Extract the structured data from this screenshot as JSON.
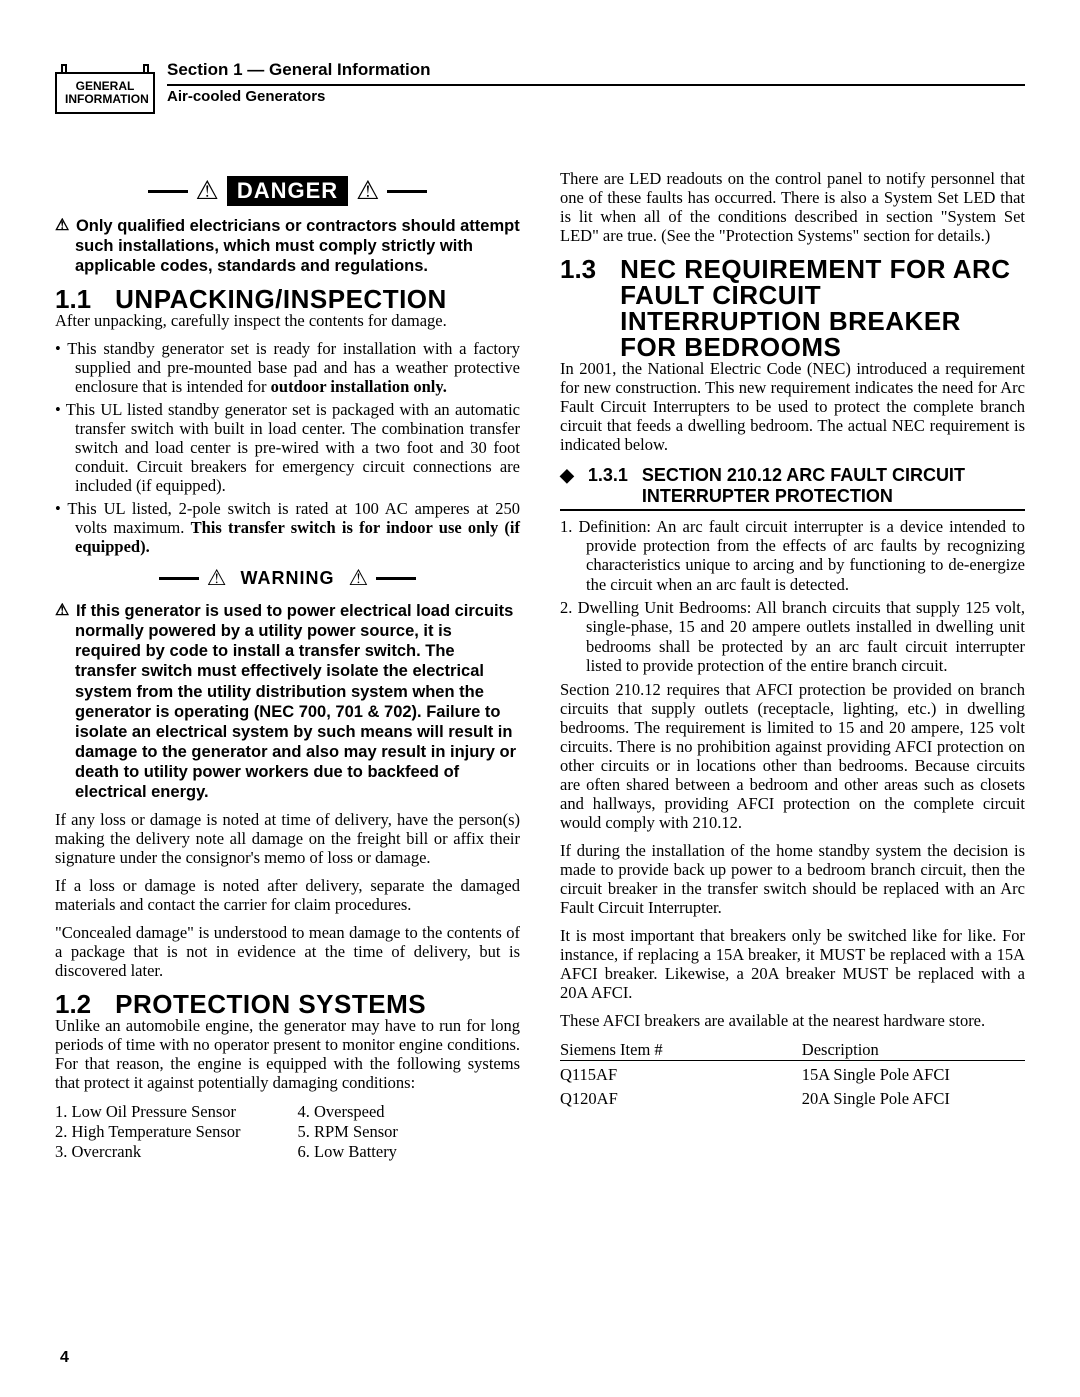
{
  "header": {
    "tab_line1": "GENERAL",
    "tab_line2": "INFORMATION",
    "section_title": "Section 1 — General Information",
    "subtitle": "Air-cooled Generators"
  },
  "left": {
    "danger_label": "DANGER",
    "danger_text": "Only qualified electricians or contractors should attempt such installations, which must comply strictly with applicable codes, standards and regulations.",
    "s11_num": "1.1",
    "s11_title": "UNPACKING/INSPECTION",
    "s11_intro": "After unpacking, carefully inspect the contents for damage.",
    "s11_bullets": [
      {
        "pre": "This standby generator set is ready for installation with a factory supplied and pre-mounted base pad and has a weather protective enclosure that is intended for ",
        "bold": "outdoor installation only."
      },
      {
        "pre": "This UL listed standby generator set is packaged with an automatic transfer switch with built in load center. The combination transfer switch and load center is pre-wired with a two foot and 30 foot conduit. Circuit breakers for emergency circuit connections are included (if equipped).",
        "bold": ""
      },
      {
        "pre": "This UL listed, 2-pole switch is rated at 100 AC amperes at 250 volts maximum. ",
        "bold": "This transfer switch is for indoor use only (if equipped)."
      }
    ],
    "warning_label": "WARNING",
    "warning_text": "If this generator is used to power electrical load circuits normally powered by a utility power source, it is required by code to install a transfer switch. The transfer switch must effectively isolate the electrical system from the utility distribution system when the generator is operating (NEC 700, 701 & 702). Failure to isolate an electrical system by such means will result in damage to the generator and also may result in injury or death to utility power workers due to backfeed of electrical energy.",
    "p1": "If any loss or damage is noted at time of delivery, have the person(s) making the delivery note all damage on the freight bill or affix their signature under the consignor's memo of loss or damage.",
    "p2": "If a loss or damage is noted after delivery, separate the damaged materials and contact the carrier for claim procedures.",
    "p3": "\"Concealed damage\" is understood to mean damage to the contents of a package that is not in evidence at the time of delivery, but is discovered later.",
    "s12_num": "1.2",
    "s12_title": "PROTECTION SYSTEMS",
    "s12_intro": "Unlike an automobile engine, the generator may have to run for long periods of time with no operator present to monitor engine conditions. For that reason, the engine is equipped with the following systems that protect it against potentially damaging conditions:",
    "sensors_left": [
      "1. Low Oil Pressure Sensor",
      "2. High Temperature Sensor",
      "3. Overcrank"
    ],
    "sensors_right": [
      "4. Overspeed",
      "5. RPM Sensor",
      "6. Low Battery"
    ]
  },
  "right": {
    "intro": "There are LED readouts on the control panel to notify personnel that one of these faults has occurred. There is also a System Set LED that is lit when all of the conditions described in section \"System Set LED\" are true. (See the \"Protection Systems\" section for details.)",
    "s13_num": "1.3",
    "s13_title": "NEC REQUIREMENT FOR ARC FAULT CIRCUIT INTERRUPTION BREAKER FOR BEDROOMS",
    "s13_intro": "In 2001, the National Electric Code (NEC) introduced a requirement for new construction. This new requirement indicates the need for Arc Fault Circuit Interrupters to be used to protect the complete branch circuit that feeds a dwelling bedroom. The actual NEC requirement is indicated below.",
    "s131_num": "1.3.1",
    "s131_title": "SECTION 210.12 ARC FAULT CIRCUIT INTERRUPTER PROTECTION",
    "ol": [
      "1. Definition: An arc fault circuit interrupter is a device intended to provide protection from the effects of arc faults by recognizing characteristics unique to arcing and by functioning to de-energize the circuit when an arc fault is detected.",
      "2. Dwelling Unit Bedrooms: All branch circuits that supply 125 volt, single-phase, 15 and 20 ampere outlets installed in dwelling unit bedrooms shall be protected by an arc fault circuit interrupter listed to provide protection of the entire branch circuit."
    ],
    "p4": "Section 210.12 requires that AFCI protection be provided on branch circuits that supply outlets (receptacle, lighting, etc.) in dwelling bedrooms. The requirement is limited to 15 and 20 ampere, 125 volt circuits. There is no prohibition against providing AFCI protection on other circuits or in locations other than bedrooms. Because circuits are often shared between a bedroom and other areas such as closets and hallways, providing AFCI protection on the complete circuit would comply with 210.12.",
    "p5": "If during the installation of the home standby system the decision is made to provide back up power to a bedroom branch circuit, then the circuit breaker in the transfer switch should be replaced with an Arc Fault Circuit Interrupter.",
    "p6": "It is most important that breakers only be switched like for like. For instance, if replacing a 15A breaker, it MUST be replaced with a 15A AFCI breaker. Likewise, a 20A breaker MUST be replaced with a 20A AFCI.",
    "p7": "These AFCI breakers are available at the nearest hardware store.",
    "table": {
      "h1": "Siemens Item #",
      "h2": "Description",
      "rows": [
        {
          "c1": "Q115AF",
          "c2": "15A Single Pole AFCI"
        },
        {
          "c1": "Q120AF",
          "c2": "20A Single Pole AFCI"
        }
      ]
    }
  },
  "page_number": "4"
}
